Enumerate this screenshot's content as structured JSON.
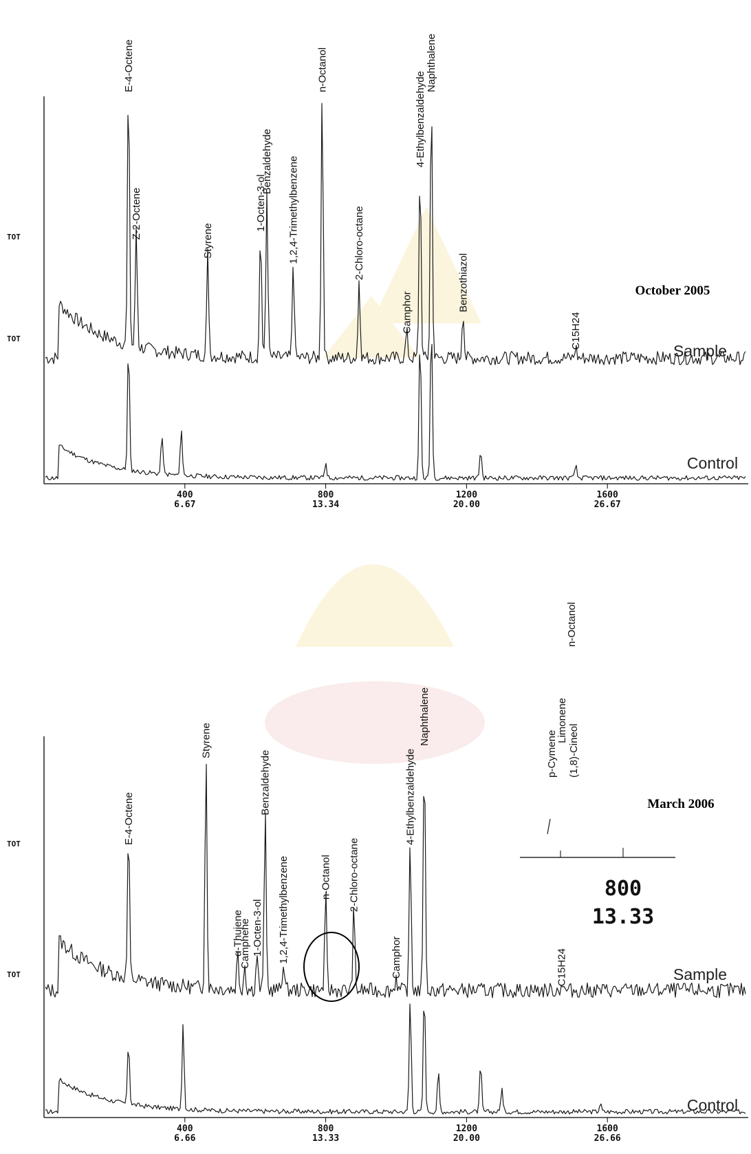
{
  "chart_data": [
    {
      "type": "line",
      "title": "October 2005",
      "x_ticks": [
        "400",
        "800",
        "1200",
        "1600"
      ],
      "x_ticks_minutes": [
        "6.67",
        "13.34",
        "20.00",
        "26.67"
      ],
      "xlim": [
        0,
        2000
      ],
      "y_labels": [
        "TOT",
        "TOT"
      ],
      "series": [
        {
          "name": "Sample",
          "peaks": [
            {
              "label": "E-4-Octene",
              "x": 240,
              "h": 1.0
            },
            {
              "label": "Z-2-Octene",
              "x": 262,
              "h": 0.45
            },
            {
              "label": "Styrene",
              "x": 465,
              "h": 0.38
            },
            {
              "label": "1-Octen-3-ol",
              "x": 615,
              "h": 0.48
            },
            {
              "label": "Benzaldehyde",
              "x": 633,
              "h": 0.62
            },
            {
              "label": "1,2,4-Trimethylbenzene",
              "x": 708,
              "h": 0.36
            },
            {
              "label": "n-Octanol",
              "x": 790,
              "h": 1.0
            },
            {
              "label": "2-Chloro-octane",
              "x": 895,
              "h": 0.3
            },
            {
              "label": "Camphor",
              "x": 1030,
              "h": 0.1
            },
            {
              "label": "4-Ethylbenzaldehyde",
              "x": 1068,
              "h": 0.72
            },
            {
              "label": "Naphthalene",
              "x": 1100,
              "h": 1.0
            },
            {
              "label": "Benzothiazol",
              "x": 1190,
              "h": 0.18
            },
            {
              "label": "C15H24",
              "x": 1510,
              "h": 0.04
            }
          ]
        },
        {
          "name": "Control"
        }
      ]
    },
    {
      "type": "line",
      "title": "March 2006",
      "x_ticks": [
        "400",
        "800",
        "1200",
        "1600"
      ],
      "x_ticks_minutes": [
        "6.66",
        "13.33",
        "20.00",
        "26.66"
      ],
      "xlim": [
        0,
        2000
      ],
      "y_labels": [
        "TOT",
        "TOT"
      ],
      "series": [
        {
          "name": "Sample",
          "peaks": [
            {
              "label": "E-4-Octene",
              "x": 240,
              "h": 0.6
            },
            {
              "label": "Styrene",
              "x": 460,
              "h": 0.95
            },
            {
              "label": "α-Thujene",
              "x": 550,
              "h": 0.15
            },
            {
              "label": "Camphene",
              "x": 570,
              "h": 0.1
            },
            {
              "label": "1-Octen-3-ol",
              "x": 605,
              "h": 0.15
            },
            {
              "label": "Benzaldehyde",
              "x": 628,
              "h": 0.72
            },
            {
              "label": "1,2,4-Trimethylbenzene",
              "x": 680,
              "h": 0.12
            },
            {
              "label": "n-Octanol",
              "x": 800,
              "h": 0.38
            },
            {
              "label": "2-Chloro-octane",
              "x": 880,
              "h": 0.33
            },
            {
              "label": "Camphor",
              "x": 1000,
              "h": 0.06
            },
            {
              "label": "4-Ethylbenzaldehyde",
              "x": 1040,
              "h": 0.6
            },
            {
              "label": "Naphthalene",
              "x": 1080,
              "h": 1.0
            },
            {
              "label": "C15H24",
              "x": 1470,
              "h": 0.03
            }
          ]
        },
        {
          "name": "Control"
        }
      ],
      "inset": {
        "x_tick": "800",
        "x_tick_minutes": "13.33",
        "peaks": [
          "p-Cymene",
          "Limonene",
          "(1,8)-Cineol",
          "n-Octanol"
        ]
      }
    }
  ]
}
